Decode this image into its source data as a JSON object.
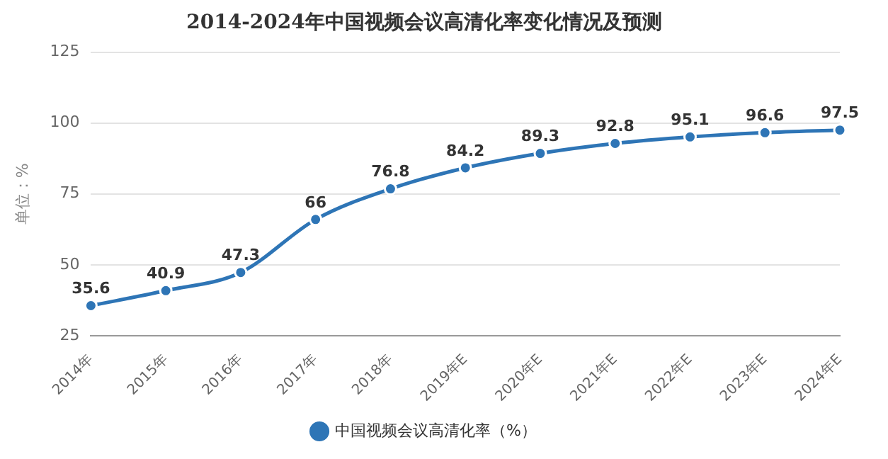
{
  "chart_data": {
    "type": "line",
    "title": "2014-2024年中国视频会议高清化率变化情况及预测",
    "ylabel": "单位：%",
    "categories": [
      "2014年",
      "2015年",
      "2016年",
      "2017年",
      "2018年",
      "2019年E",
      "2020年E",
      "2021年E",
      "2022年E",
      "2023年E",
      "2024年E"
    ],
    "series": [
      {
        "name": "中国视频会议高清化率（%）",
        "color": "#2e75b6",
        "values": [
          35.6,
          40.9,
          47.3,
          66,
          76.8,
          84.2,
          89.3,
          92.8,
          95.1,
          96.6,
          97.5
        ]
      }
    ],
    "ylim": [
      25,
      125
    ],
    "yticks": [
      25,
      50,
      75,
      100,
      125
    ],
    "grid": "y",
    "legend": "bottom",
    "marker": "circle",
    "line_style": "solid",
    "data_labels": true
  }
}
